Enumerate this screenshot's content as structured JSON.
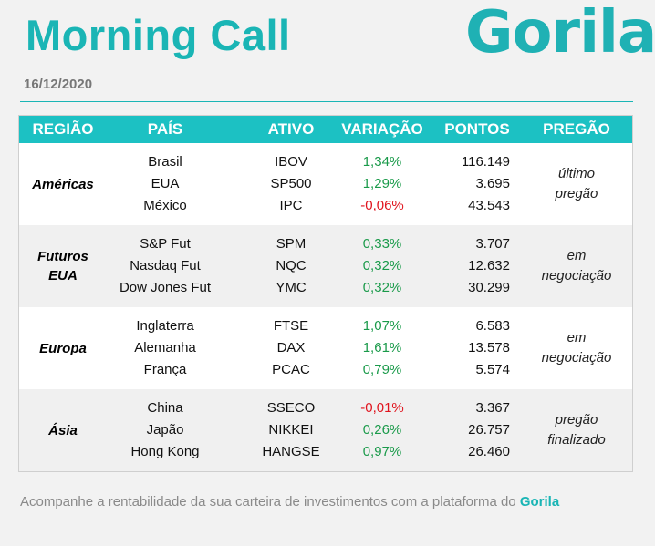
{
  "header": {
    "title": "Morning Call",
    "logo_text": "Gorila",
    "date": "16/12/2020"
  },
  "colors": {
    "accent": "#1ab5b5",
    "header_bg": "#1cc1c3",
    "positive": "#1a9a4a",
    "negative": "#e0141e"
  },
  "table": {
    "columns": [
      "REGIÃO",
      "PAÍS",
      "ATIVO",
      "VARIAÇÃO",
      "PONTOS",
      "PREGÃO"
    ],
    "groups": [
      {
        "region_lines": [
          "Américas"
        ],
        "status_lines": [
          "último",
          "pregão"
        ],
        "rows": [
          {
            "pais": "Brasil",
            "ativo": "IBOV",
            "variacao": "1,34%",
            "pontos": "116.149",
            "sign": "pos"
          },
          {
            "pais": "EUA",
            "ativo": "SP500",
            "variacao": "1,29%",
            "pontos": "3.695",
            "sign": "pos"
          },
          {
            "pais": "México",
            "ativo": "IPC",
            "variacao": "-0,06%",
            "pontos": "43.543",
            "sign": "neg"
          }
        ]
      },
      {
        "region_lines": [
          "Futuros",
          "EUA"
        ],
        "status_lines": [
          "em",
          "negociação"
        ],
        "rows": [
          {
            "pais": "S&P Fut",
            "ativo": "SPM",
            "variacao": "0,33%",
            "pontos": "3.707",
            "sign": "pos"
          },
          {
            "pais": "Nasdaq Fut",
            "ativo": "NQC",
            "variacao": "0,32%",
            "pontos": "12.632",
            "sign": "pos"
          },
          {
            "pais": "Dow Jones Fut",
            "ativo": "YMC",
            "variacao": "0,32%",
            "pontos": "30.299",
            "sign": "pos"
          }
        ]
      },
      {
        "region_lines": [
          "Europa"
        ],
        "status_lines": [
          "em",
          "negociação"
        ],
        "rows": [
          {
            "pais": "Inglaterra",
            "ativo": "FTSE",
            "variacao": "1,07%",
            "pontos": "6.583",
            "sign": "pos"
          },
          {
            "pais": "Alemanha",
            "ativo": "DAX",
            "variacao": "1,61%",
            "pontos": "13.578",
            "sign": "pos"
          },
          {
            "pais": "França",
            "ativo": "PCAC",
            "variacao": "0,79%",
            "pontos": "5.574",
            "sign": "pos"
          }
        ]
      },
      {
        "region_lines": [
          "Ásia"
        ],
        "status_lines": [
          "pregão",
          "finalizado"
        ],
        "rows": [
          {
            "pais": "China",
            "ativo": "SSECO",
            "variacao": "-0,01%",
            "pontos": "3.367",
            "sign": "neg"
          },
          {
            "pais": "Japão",
            "ativo": "NIKKEI",
            "variacao": "0,26%",
            "pontos": "26.757",
            "sign": "pos"
          },
          {
            "pais": "Hong Kong",
            "ativo": "HANGSE",
            "variacao": "0,97%",
            "pontos": "26.460",
            "sign": "pos"
          }
        ]
      }
    ]
  },
  "footer": {
    "text": "Acompanhe a rentabilidade da sua carteira de investimentos com a plataforma do",
    "brand": "Gorila"
  }
}
